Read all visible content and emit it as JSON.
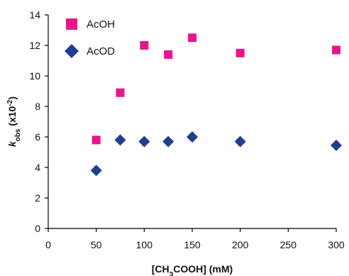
{
  "chart_data": {
    "type": "scatter",
    "title": "",
    "xlabel": {
      "prefix": "[CH",
      "sub": "3",
      "suffix": "COOH] (mM)"
    },
    "ylabel": {
      "k": "k",
      "sub": "obs",
      "rest": " (x10",
      "sup": "-2",
      "close": ")"
    },
    "xlim": [
      0,
      300
    ],
    "ylim": [
      0,
      14
    ],
    "xticks": [
      0,
      50,
      100,
      150,
      200,
      250,
      300
    ],
    "yticks": [
      0,
      2,
      4,
      6,
      8,
      10,
      12,
      14
    ],
    "grid": false,
    "legend_position": "top-left",
    "series": [
      {
        "name": "AcOH",
        "marker": "square",
        "color": "#e8168c",
        "x": [
          50,
          75,
          100,
          125,
          150,
          200,
          300
        ],
        "y": [
          5.8,
          8.9,
          12.0,
          11.4,
          12.5,
          11.5,
          11.7
        ]
      },
      {
        "name": "AcOD",
        "marker": "diamond",
        "color": "#1f3f8f",
        "x": [
          50,
          75,
          100,
          125,
          150,
          200,
          300
        ],
        "y": [
          3.8,
          5.8,
          5.7,
          5.7,
          6.0,
          5.7,
          5.45
        ]
      }
    ]
  }
}
